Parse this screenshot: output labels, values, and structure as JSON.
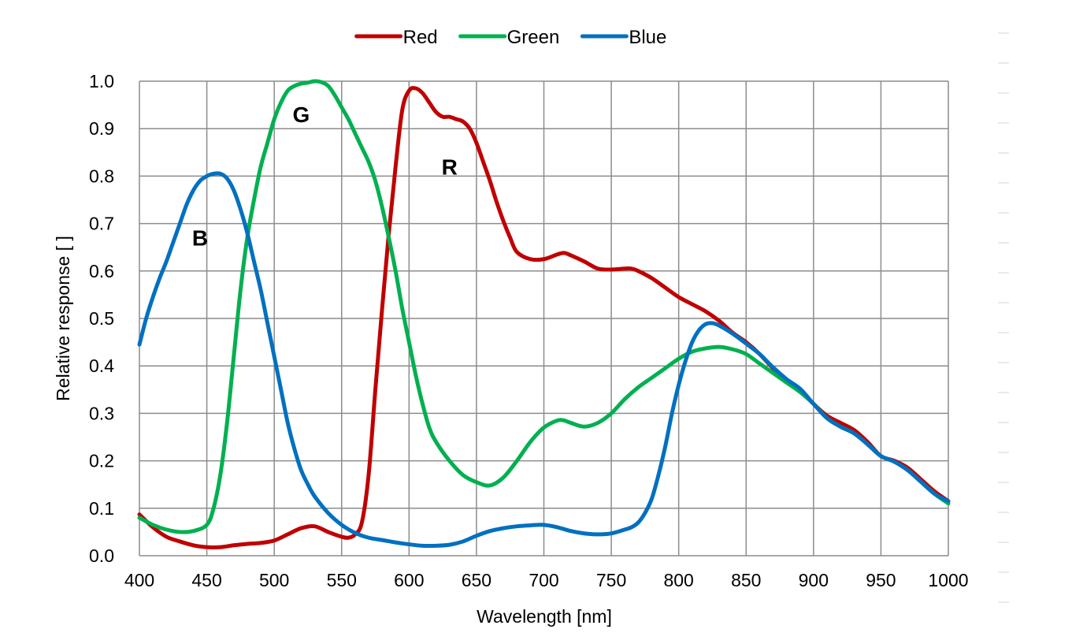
{
  "chart_data": {
    "type": "line",
    "title": "",
    "xlabel": "Wavelength [nm]",
    "ylabel": "Relative response [ ]",
    "xlim": [
      400,
      1000
    ],
    "ylim": [
      0,
      1.0
    ],
    "x_ticks": [
      "400",
      "450",
      "500",
      "550",
      "600",
      "650",
      "700",
      "750",
      "800",
      "850",
      "900",
      "950",
      "1000"
    ],
    "y_ticks": [
      "0.0",
      "0.1",
      "0.2",
      "0.3",
      "0.4",
      "0.5",
      "0.6",
      "0.7",
      "0.8",
      "0.9",
      "1.0"
    ],
    "grid": true,
    "legend_position": "top",
    "series": [
      {
        "name": "Red",
        "color": "#c00000",
        "points": [
          [
            400,
            0.087
          ],
          [
            410,
            0.06
          ],
          [
            420,
            0.04
          ],
          [
            430,
            0.03
          ],
          [
            440,
            0.022
          ],
          [
            450,
            0.018
          ],
          [
            460,
            0.018
          ],
          [
            470,
            0.022
          ],
          [
            480,
            0.025
          ],
          [
            490,
            0.027
          ],
          [
            500,
            0.032
          ],
          [
            510,
            0.045
          ],
          [
            520,
            0.058
          ],
          [
            530,
            0.062
          ],
          [
            540,
            0.05
          ],
          [
            550,
            0.04
          ],
          [
            555,
            0.038
          ],
          [
            560,
            0.045
          ],
          [
            565,
            0.07
          ],
          [
            570,
            0.17
          ],
          [
            575,
            0.35
          ],
          [
            580,
            0.52
          ],
          [
            585,
            0.68
          ],
          [
            590,
            0.82
          ],
          [
            595,
            0.94
          ],
          [
            600,
            0.98
          ],
          [
            605,
            0.985
          ],
          [
            610,
            0.975
          ],
          [
            615,
            0.955
          ],
          [
            620,
            0.935
          ],
          [
            625,
            0.925
          ],
          [
            630,
            0.925
          ],
          [
            635,
            0.92
          ],
          [
            640,
            0.915
          ],
          [
            645,
            0.9
          ],
          [
            650,
            0.87
          ],
          [
            655,
            0.83
          ],
          [
            660,
            0.79
          ],
          [
            665,
            0.745
          ],
          [
            670,
            0.705
          ],
          [
            675,
            0.67
          ],
          [
            680,
            0.64
          ],
          [
            690,
            0.625
          ],
          [
            700,
            0.625
          ],
          [
            710,
            0.635
          ],
          [
            715,
            0.638
          ],
          [
            720,
            0.633
          ],
          [
            730,
            0.62
          ],
          [
            740,
            0.605
          ],
          [
            750,
            0.603
          ],
          [
            760,
            0.605
          ],
          [
            765,
            0.605
          ],
          [
            770,
            0.6
          ],
          [
            780,
            0.585
          ],
          [
            790,
            0.565
          ],
          [
            800,
            0.545
          ],
          [
            810,
            0.53
          ],
          [
            820,
            0.515
          ],
          [
            830,
            0.495
          ],
          [
            840,
            0.47
          ],
          [
            850,
            0.45
          ],
          [
            860,
            0.425
          ],
          [
            870,
            0.395
          ],
          [
            880,
            0.37
          ],
          [
            890,
            0.35
          ],
          [
            900,
            0.32
          ],
          [
            910,
            0.295
          ],
          [
            920,
            0.28
          ],
          [
            930,
            0.265
          ],
          [
            940,
            0.24
          ],
          [
            950,
            0.21
          ],
          [
            960,
            0.2
          ],
          [
            970,
            0.185
          ],
          [
            980,
            0.16
          ],
          [
            990,
            0.135
          ],
          [
            1000,
            0.115
          ]
        ]
      },
      {
        "name": "Green",
        "color": "#00b050",
        "points": [
          [
            400,
            0.08
          ],
          [
            410,
            0.065
          ],
          [
            420,
            0.055
          ],
          [
            430,
            0.05
          ],
          [
            440,
            0.052
          ],
          [
            450,
            0.065
          ],
          [
            455,
            0.1
          ],
          [
            460,
            0.17
          ],
          [
            465,
            0.28
          ],
          [
            470,
            0.42
          ],
          [
            475,
            0.56
          ],
          [
            480,
            0.67
          ],
          [
            485,
            0.75
          ],
          [
            490,
            0.82
          ],
          [
            495,
            0.87
          ],
          [
            500,
            0.92
          ],
          [
            505,
            0.955
          ],
          [
            510,
            0.98
          ],
          [
            515,
            0.99
          ],
          [
            520,
            0.995
          ],
          [
            525,
            0.997
          ],
          [
            530,
            1.0
          ],
          [
            535,
            0.998
          ],
          [
            540,
            0.99
          ],
          [
            545,
            0.97
          ],
          [
            550,
            0.945
          ],
          [
            555,
            0.92
          ],
          [
            560,
            0.89
          ],
          [
            565,
            0.86
          ],
          [
            570,
            0.83
          ],
          [
            575,
            0.79
          ],
          [
            580,
            0.735
          ],
          [
            585,
            0.67
          ],
          [
            590,
            0.6
          ],
          [
            595,
            0.52
          ],
          [
            600,
            0.45
          ],
          [
            605,
            0.38
          ],
          [
            610,
            0.32
          ],
          [
            615,
            0.27
          ],
          [
            620,
            0.24
          ],
          [
            630,
            0.2
          ],
          [
            640,
            0.17
          ],
          [
            650,
            0.155
          ],
          [
            660,
            0.148
          ],
          [
            670,
            0.165
          ],
          [
            680,
            0.2
          ],
          [
            690,
            0.24
          ],
          [
            700,
            0.27
          ],
          [
            710,
            0.285
          ],
          [
            715,
            0.285
          ],
          [
            720,
            0.28
          ],
          [
            730,
            0.272
          ],
          [
            740,
            0.28
          ],
          [
            750,
            0.3
          ],
          [
            760,
            0.33
          ],
          [
            770,
            0.355
          ],
          [
            780,
            0.375
          ],
          [
            790,
            0.395
          ],
          [
            800,
            0.415
          ],
          [
            810,
            0.43
          ],
          [
            820,
            0.437
          ],
          [
            830,
            0.44
          ],
          [
            840,
            0.435
          ],
          [
            850,
            0.425
          ],
          [
            860,
            0.405
          ],
          [
            870,
            0.385
          ],
          [
            880,
            0.365
          ],
          [
            890,
            0.345
          ],
          [
            900,
            0.32
          ],
          [
            910,
            0.29
          ],
          [
            920,
            0.272
          ],
          [
            930,
            0.258
          ],
          [
            940,
            0.235
          ],
          [
            950,
            0.21
          ],
          [
            960,
            0.198
          ],
          [
            970,
            0.18
          ],
          [
            980,
            0.155
          ],
          [
            990,
            0.13
          ],
          [
            1000,
            0.11
          ]
        ]
      },
      {
        "name": "Blue",
        "color": "#0070c0",
        "points": [
          [
            400,
            0.445
          ],
          [
            405,
            0.5
          ],
          [
            410,
            0.545
          ],
          [
            415,
            0.585
          ],
          [
            420,
            0.62
          ],
          [
            425,
            0.66
          ],
          [
            430,
            0.7
          ],
          [
            435,
            0.74
          ],
          [
            440,
            0.77
          ],
          [
            445,
            0.79
          ],
          [
            450,
            0.8
          ],
          [
            455,
            0.805
          ],
          [
            460,
            0.805
          ],
          [
            465,
            0.795
          ],
          [
            470,
            0.77
          ],
          [
            475,
            0.73
          ],
          [
            480,
            0.68
          ],
          [
            485,
            0.62
          ],
          [
            490,
            0.56
          ],
          [
            495,
            0.49
          ],
          [
            500,
            0.42
          ],
          [
            505,
            0.35
          ],
          [
            510,
            0.28
          ],
          [
            515,
            0.225
          ],
          [
            520,
            0.18
          ],
          [
            525,
            0.15
          ],
          [
            530,
            0.125
          ],
          [
            540,
            0.09
          ],
          [
            550,
            0.065
          ],
          [
            560,
            0.048
          ],
          [
            570,
            0.038
          ],
          [
            580,
            0.033
          ],
          [
            590,
            0.028
          ],
          [
            600,
            0.024
          ],
          [
            610,
            0.021
          ],
          [
            620,
            0.021
          ],
          [
            630,
            0.023
          ],
          [
            640,
            0.03
          ],
          [
            650,
            0.042
          ],
          [
            660,
            0.052
          ],
          [
            670,
            0.058
          ],
          [
            680,
            0.062
          ],
          [
            690,
            0.064
          ],
          [
            700,
            0.065
          ],
          [
            710,
            0.06
          ],
          [
            720,
            0.052
          ],
          [
            730,
            0.047
          ],
          [
            740,
            0.045
          ],
          [
            750,
            0.047
          ],
          [
            760,
            0.055
          ],
          [
            765,
            0.06
          ],
          [
            770,
            0.07
          ],
          [
            775,
            0.09
          ],
          [
            780,
            0.12
          ],
          [
            785,
            0.17
          ],
          [
            790,
            0.23
          ],
          [
            795,
            0.3
          ],
          [
            800,
            0.36
          ],
          [
            805,
            0.41
          ],
          [
            810,
            0.45
          ],
          [
            815,
            0.475
          ],
          [
            820,
            0.488
          ],
          [
            825,
            0.49
          ],
          [
            830,
            0.485
          ],
          [
            840,
            0.468
          ],
          [
            850,
            0.447
          ],
          [
            860,
            0.425
          ],
          [
            870,
            0.397
          ],
          [
            880,
            0.372
          ],
          [
            890,
            0.352
          ],
          [
            900,
            0.32
          ],
          [
            910,
            0.29
          ],
          [
            920,
            0.272
          ],
          [
            930,
            0.258
          ],
          [
            940,
            0.235
          ],
          [
            950,
            0.21
          ],
          [
            960,
            0.198
          ],
          [
            970,
            0.18
          ],
          [
            980,
            0.155
          ],
          [
            990,
            0.13
          ],
          [
            1000,
            0.115
          ]
        ]
      }
    ],
    "annotations": [
      {
        "text": "G",
        "x": 520,
        "y": 0.93
      },
      {
        "text": "R",
        "x": 630,
        "y": 0.82
      },
      {
        "text": "B",
        "x": 445,
        "y": 0.67
      }
    ]
  }
}
